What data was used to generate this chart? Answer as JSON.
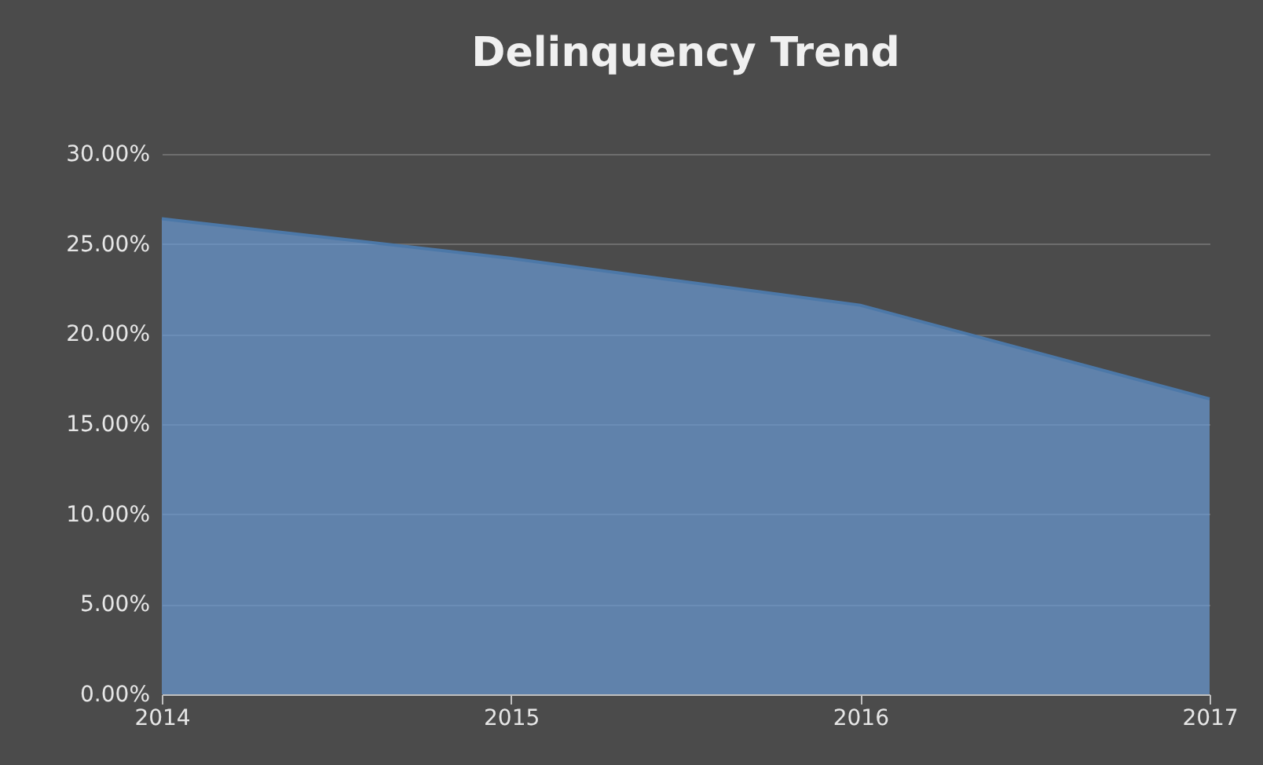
{
  "chart_data": {
    "type": "area",
    "title": "Delinquency Trend",
    "categories": [
      "2014",
      "2015",
      "2016",
      "2017"
    ],
    "series": [
      {
        "color": "#6a9ad4",
        "values": [
          26.4,
          24.2,
          21.6,
          16.4
        ]
      }
    ],
    "ylim": [
      0,
      30
    ],
    "yticks": [
      {
        "value": 0,
        "label": "0.00%"
      },
      {
        "value": 5,
        "label": "5.00%"
      },
      {
        "value": 10,
        "label": "10.00%"
      },
      {
        "value": 15,
        "label": "15.00%"
      },
      {
        "value": 20,
        "label": "20.00%"
      },
      {
        "value": 25,
        "label": "25.00%"
      },
      {
        "value": 30,
        "label": "30.00%"
      }
    ],
    "grid": "y"
  }
}
